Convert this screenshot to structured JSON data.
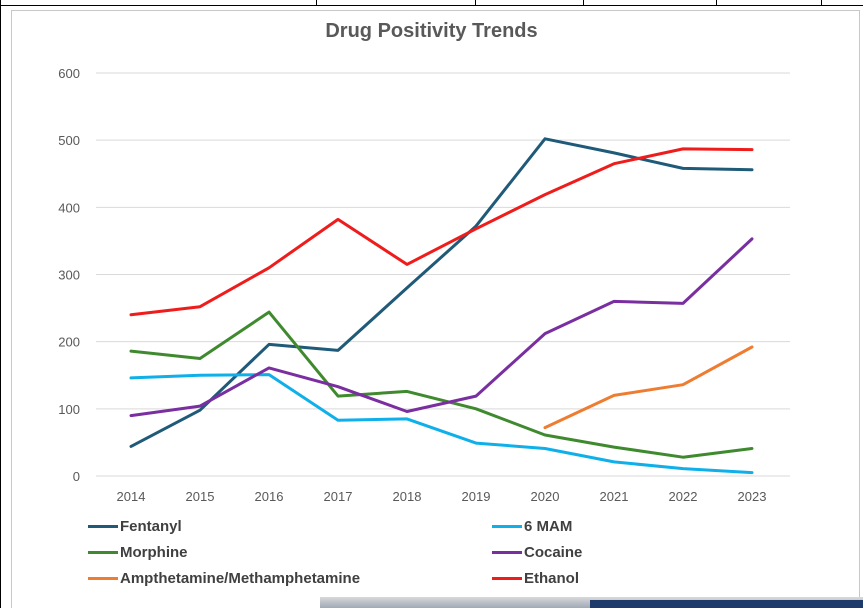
{
  "chart_data": {
    "type": "line",
    "title": "Drug Positivity Trends",
    "xlabel": "",
    "ylabel": "",
    "categories": [
      "2014",
      "2015",
      "2016",
      "2017",
      "2018",
      "2019",
      "2020",
      "2021",
      "2022",
      "2023"
    ],
    "ylim": [
      0,
      600
    ],
    "yticks": [
      0,
      100,
      200,
      300,
      400,
      500,
      600
    ],
    "grid": true,
    "legend_position": "bottom",
    "series": [
      {
        "name": "Fentanyl",
        "color": "#1f5a78",
        "values": [
          44,
          98,
          196,
          187,
          280,
          372,
          502,
          481,
          458,
          456
        ]
      },
      {
        "name": "6 MAM",
        "color": "#0fb0ea",
        "values": [
          146,
          150,
          151,
          83,
          85,
          49,
          41,
          21,
          11,
          5
        ]
      },
      {
        "name": "Morphine",
        "color": "#3f8a2e",
        "values": [
          186,
          175,
          244,
          119,
          126,
          100,
          61,
          43,
          28,
          41
        ]
      },
      {
        "name": "Cocaine",
        "color": "#7a2fa0",
        "values": [
          90,
          104,
          161,
          133,
          96,
          119,
          212,
          260,
          257,
          353
        ]
      },
      {
        "name": "Ampthetamine/Methamphetamine",
        "color": "#ee7d31",
        "values": [
          null,
          null,
          null,
          null,
          null,
          null,
          72,
          120,
          136,
          192
        ]
      },
      {
        "name": "Ethanol",
        "color": "#ef1c1c",
        "values": [
          240,
          252,
          310,
          382,
          315,
          368,
          419,
          465,
          487,
          486
        ]
      }
    ]
  }
}
